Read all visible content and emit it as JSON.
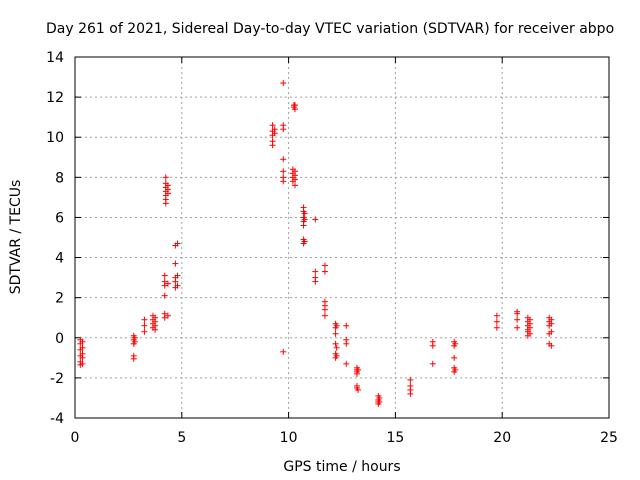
{
  "chart_data": {
    "type": "scatter",
    "title": "Day 261 of 2021, Sidereal Day-to-day VTEC variation (SDTVAR) for receiver abpo",
    "xlabel": "GPS time / hours",
    "ylabel": "SDTVAR / TECUs",
    "xlim": [
      0,
      25
    ],
    "ylim": [
      -4,
      14
    ],
    "xticks": [
      0,
      5,
      10,
      15,
      20,
      25
    ],
    "yticks": [
      -4,
      -2,
      0,
      2,
      4,
      6,
      8,
      10,
      12,
      14
    ],
    "grid": true,
    "marker": "plus",
    "color": "#ff0000",
    "series": [
      {
        "name": "SDTVAR",
        "points": [
          [
            0.25,
            -0.1
          ],
          [
            0.25,
            -0.3
          ],
          [
            0.25,
            -0.6
          ],
          [
            0.25,
            -0.9
          ],
          [
            0.25,
            -1.2
          ],
          [
            0.25,
            -1.35
          ],
          [
            0.35,
            -0.2
          ],
          [
            0.35,
            -0.5
          ],
          [
            0.35,
            -0.8
          ],
          [
            0.35,
            -1.0
          ],
          [
            0.35,
            -1.3
          ],
          [
            2.75,
            0.1
          ],
          [
            2.75,
            -0.1
          ],
          [
            2.75,
            -0.3
          ],
          [
            2.75,
            -0.9
          ],
          [
            2.75,
            -1.05
          ],
          [
            2.8,
            0.0
          ],
          [
            2.8,
            -0.2
          ],
          [
            3.25,
            0.9
          ],
          [
            3.25,
            0.6
          ],
          [
            3.25,
            0.3
          ],
          [
            3.65,
            1.1
          ],
          [
            3.65,
            0.9
          ],
          [
            3.65,
            0.7
          ],
          [
            3.65,
            0.5
          ],
          [
            3.75,
            1.0
          ],
          [
            3.75,
            0.8
          ],
          [
            3.75,
            0.6
          ],
          [
            3.75,
            0.4
          ],
          [
            4.2,
            3.1
          ],
          [
            4.2,
            2.8
          ],
          [
            4.2,
            2.6
          ],
          [
            4.2,
            2.1
          ],
          [
            4.2,
            1.2
          ],
          [
            4.2,
            1.0
          ],
          [
            4.25,
            8.0
          ],
          [
            4.25,
            7.7
          ],
          [
            4.25,
            7.5
          ],
          [
            4.25,
            7.3
          ],
          [
            4.25,
            7.1
          ],
          [
            4.25,
            6.9
          ],
          [
            4.25,
            6.7
          ],
          [
            4.35,
            7.6
          ],
          [
            4.35,
            7.4
          ],
          [
            4.35,
            7.2
          ],
          [
            4.35,
            2.7
          ],
          [
            4.35,
            1.1
          ],
          [
            4.7,
            4.6
          ],
          [
            4.7,
            3.7
          ],
          [
            4.7,
            3.0
          ],
          [
            4.7,
            2.8
          ],
          [
            4.7,
            2.5
          ],
          [
            4.8,
            4.7
          ],
          [
            4.8,
            3.1
          ],
          [
            4.8,
            2.6
          ],
          [
            9.25,
            10.6
          ],
          [
            9.25,
            10.3
          ],
          [
            9.25,
            10.1
          ],
          [
            9.25,
            9.8
          ],
          [
            9.25,
            9.6
          ],
          [
            9.35,
            10.4
          ],
          [
            9.35,
            10.2
          ],
          [
            9.75,
            12.7
          ],
          [
            9.75,
            10.6
          ],
          [
            9.75,
            10.4
          ],
          [
            9.75,
            8.9
          ],
          [
            9.75,
            8.3
          ],
          [
            9.75,
            8.0
          ],
          [
            9.75,
            7.8
          ],
          [
            9.75,
            -0.7
          ],
          [
            10.25,
            11.6
          ],
          [
            10.25,
            11.5
          ],
          [
            10.3,
            11.4
          ],
          [
            10.3,
            11.6
          ],
          [
            10.2,
            8.4
          ],
          [
            10.2,
            8.2
          ],
          [
            10.2,
            8.0
          ],
          [
            10.2,
            7.8
          ],
          [
            10.3,
            8.3
          ],
          [
            10.3,
            8.1
          ],
          [
            10.3,
            7.9
          ],
          [
            10.3,
            7.6
          ],
          [
            10.7,
            6.5
          ],
          [
            10.7,
            6.3
          ],
          [
            10.7,
            6.0
          ],
          [
            10.7,
            5.8
          ],
          [
            10.7,
            5.6
          ],
          [
            10.7,
            4.9
          ],
          [
            10.7,
            4.7
          ],
          [
            10.75,
            4.8
          ],
          [
            10.75,
            6.2
          ],
          [
            10.75,
            5.9
          ],
          [
            11.25,
            5.9
          ],
          [
            11.25,
            3.3
          ],
          [
            11.25,
            3.0
          ],
          [
            11.25,
            2.8
          ],
          [
            11.7,
            3.6
          ],
          [
            11.7,
            3.3
          ],
          [
            11.7,
            1.8
          ],
          [
            11.7,
            1.6
          ],
          [
            11.7,
            1.4
          ],
          [
            11.7,
            1.1
          ],
          [
            12.2,
            0.7
          ],
          [
            12.2,
            0.5
          ],
          [
            12.2,
            0.2
          ],
          [
            12.2,
            -0.3
          ],
          [
            12.2,
            -0.8
          ],
          [
            12.2,
            -1.0
          ],
          [
            12.25,
            0.6
          ],
          [
            12.25,
            -0.5
          ],
          [
            12.25,
            -0.9
          ],
          [
            12.7,
            0.6
          ],
          [
            12.7,
            -0.1
          ],
          [
            12.7,
            -0.3
          ],
          [
            12.7,
            -1.3
          ],
          [
            13.2,
            -1.5
          ],
          [
            13.2,
            -1.6
          ],
          [
            13.2,
            -1.7
          ],
          [
            13.2,
            -1.8
          ],
          [
            13.2,
            -2.4
          ],
          [
            13.2,
            -2.5
          ],
          [
            13.25,
            -1.6
          ],
          [
            13.25,
            -2.6
          ],
          [
            14.2,
            -2.9
          ],
          [
            14.2,
            -3.1
          ],
          [
            14.2,
            -3.2
          ],
          [
            14.2,
            -3.3
          ],
          [
            14.25,
            -3.0
          ],
          [
            14.25,
            -3.2
          ],
          [
            15.7,
            -2.1
          ],
          [
            15.7,
            -2.4
          ],
          [
            15.7,
            -2.6
          ],
          [
            15.7,
            -2.8
          ],
          [
            16.75,
            -0.2
          ],
          [
            16.75,
            -0.4
          ],
          [
            16.75,
            -1.3
          ],
          [
            17.75,
            -0.2
          ],
          [
            17.75,
            -0.4
          ],
          [
            17.75,
            -1.0
          ],
          [
            17.75,
            -1.5
          ],
          [
            17.75,
            -1.7
          ],
          [
            17.8,
            -0.3
          ],
          [
            17.8,
            -1.6
          ],
          [
            19.75,
            1.1
          ],
          [
            19.75,
            0.8
          ],
          [
            19.75,
            0.5
          ],
          [
            20.7,
            1.3
          ],
          [
            20.7,
            1.2
          ],
          [
            20.7,
            0.9
          ],
          [
            20.7,
            0.5
          ],
          [
            21.2,
            1.0
          ],
          [
            21.2,
            0.8
          ],
          [
            21.2,
            0.6
          ],
          [
            21.2,
            0.4
          ],
          [
            21.2,
            0.3
          ],
          [
            21.2,
            0.1
          ],
          [
            21.3,
            0.9
          ],
          [
            21.3,
            0.7
          ],
          [
            21.3,
            0.5
          ],
          [
            21.3,
            0.2
          ],
          [
            22.2,
            1.0
          ],
          [
            22.2,
            0.8
          ],
          [
            22.2,
            0.6
          ],
          [
            22.2,
            0.2
          ],
          [
            22.2,
            -0.3
          ],
          [
            22.3,
            0.9
          ],
          [
            22.3,
            0.7
          ],
          [
            22.3,
            0.3
          ],
          [
            22.3,
            -0.4
          ]
        ]
      }
    ]
  }
}
